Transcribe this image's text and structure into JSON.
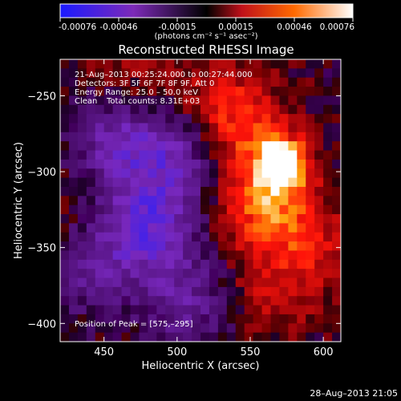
{
  "colorbar": {
    "ticks": [
      "-0.00076",
      "-0.00046",
      "-0.00015",
      "0.00015",
      "0.00046",
      "0.00076"
    ],
    "units_label": "(photons cm⁻² s⁻¹ asec⁻²)",
    "range": [
      -0.00076,
      0.00076
    ],
    "colors": {
      "neg_min": "#1a1aff",
      "neg_mid": "#7d2ab8",
      "zero": "#000000",
      "pos_low": "#c0101a",
      "pos_mid": "#ff6a00",
      "pos_max": "#ffffff"
    }
  },
  "chart_data": {
    "type": "heatmap",
    "title": "Reconstructed RHESSI Image",
    "xlabel": "Heliocentric X (arcsec)",
    "ylabel": "Heliocentric Y (arcsec)",
    "xlim": [
      420,
      612
    ],
    "ylim": [
      -412,
      -226
    ],
    "x_ticks": [
      450,
      500,
      550,
      600
    ],
    "y_ticks": [
      -250,
      -300,
      -350,
      -400
    ],
    "x_tick_labels": [
      "450",
      "500",
      "550",
      "600"
    ],
    "y_tick_labels": [
      "−250",
      "−300",
      "−350",
      "−400"
    ],
    "peak_position": [
      575,
      -295
    ],
    "value_range": [
      -0.00076,
      0.00076
    ],
    "features": [
      {
        "x": 572,
        "y": -295,
        "value": 0.00076
      },
      {
        "x": 560,
        "y": -320,
        "value": 0.0005
      },
      {
        "x": 545,
        "y": -270,
        "value": 0.00035
      },
      {
        "x": 590,
        "y": -350,
        "value": 0.00025
      },
      {
        "x": 565,
        "y": -380,
        "value": 0.0002
      },
      {
        "x": 480,
        "y": -335,
        "value": -0.0005
      },
      {
        "x": 460,
        "y": -280,
        "value": -0.0004
      },
      {
        "x": 500,
        "y": -290,
        "value": -0.00035
      },
      {
        "x": 505,
        "y": -385,
        "value": -0.0003
      },
      {
        "x": 440,
        "y": -360,
        "value": -0.0003
      },
      {
        "x": 470,
        "y": -240,
        "value": 0.00018
      },
      {
        "x": 525,
        "y": -250,
        "value": 0.00015
      },
      {
        "x": 430,
        "y": -330,
        "value": 0.00012
      }
    ]
  },
  "annotations": {
    "time_range": "21–Aug–2013 00:25:24.000 to 00:27:44.000",
    "detectors": "Detectors: 3F 5F 6F 7F 8F 9F, Att 0",
    "energy": "Energy Range: 25.0 – 50.0 keV",
    "clean": "Clean",
    "counts": "Total counts: 8.31E+03",
    "peak": "Position of Peak = [575,–295]"
  },
  "footer": {
    "timestamp": "28–Aug–2013 21:05"
  }
}
